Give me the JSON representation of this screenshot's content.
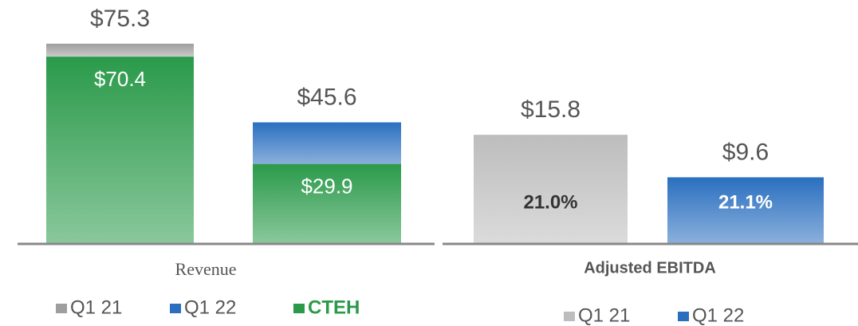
{
  "chart_data": [
    {
      "type": "bar",
      "stacked": true,
      "xlabel": "Revenue",
      "series": [
        {
          "name": "Q1 21",
          "color": "#9e9e9e",
          "values": [
            4.9,
            null
          ]
        },
        {
          "name": "Q1 22",
          "color": "#2a6fbf",
          "values": [
            null,
            15.7
          ]
        },
        {
          "name": "CTEH",
          "color": "#2a9a4a",
          "values": [
            70.4,
            29.9
          ],
          "value_labels": [
            "$70.4",
            "$29.9"
          ],
          "label_position": "inside",
          "legend_bold": true
        }
      ],
      "totals": [
        75.3,
        45.6
      ],
      "total_labels": [
        "$75.3",
        "$45.6"
      ],
      "ylim": [
        0,
        90
      ]
    },
    {
      "type": "bar",
      "stacked": true,
      "xlabel": "Adjusted EBITDA",
      "series": [
        {
          "name": "Q1 21",
          "color": "#bdbdbd",
          "values": [
            15.8,
            null
          ],
          "value_labels": [
            "$15.8",
            null
          ],
          "label_position": "top"
        },
        {
          "name": "Q1 22",
          "color": "#2a6fbf",
          "values": [
            null,
            9.6
          ],
          "value_labels": [
            null,
            "$9.6"
          ],
          "label_position": "top"
        }
      ],
      "annotations": [
        "21.0%",
        "21.1%"
      ],
      "ylim": [
        0,
        35
      ]
    }
  ]
}
